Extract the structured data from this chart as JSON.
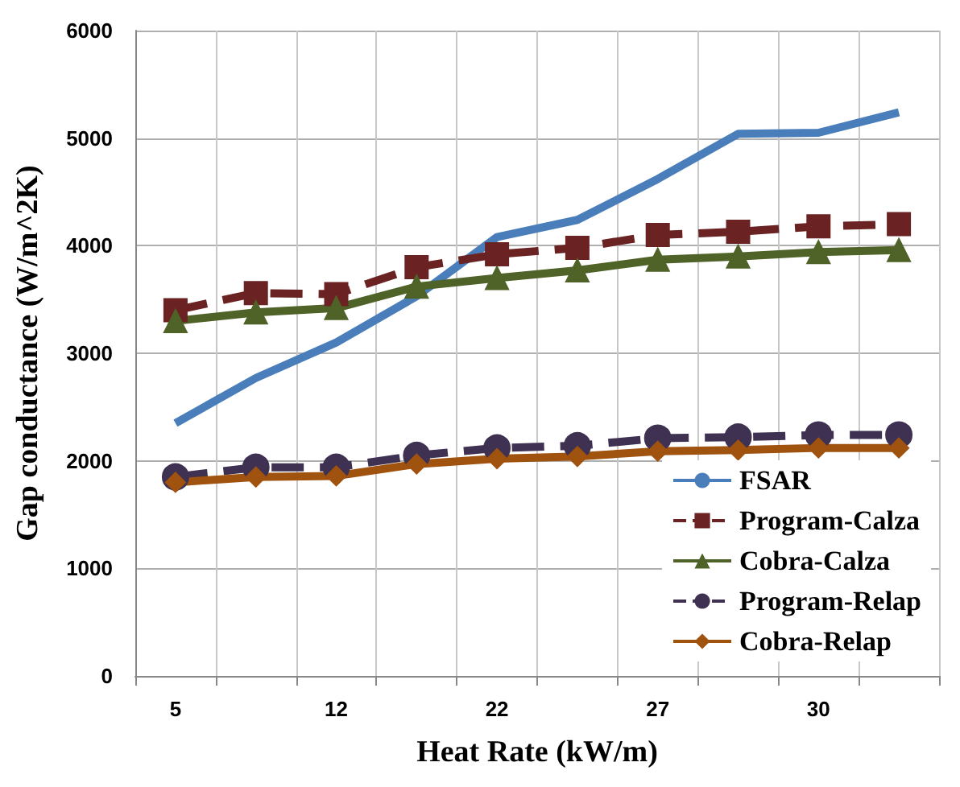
{
  "chart_data": {
    "type": "line",
    "xlabel": "Heat Rate (kW/m)",
    "ylabel": "Gap conductance (W/m^2K)",
    "categories": [
      "5",
      null,
      "12",
      null,
      "22",
      null,
      "27",
      null,
      "30",
      null
    ],
    "ylim": [
      0,
      6000
    ],
    "yticks": [
      0,
      1000,
      2000,
      3000,
      4000,
      5000,
      6000
    ],
    "grid": true,
    "legend": "bottom right",
    "series": [
      {
        "name": "FSAR",
        "color": "#4a7ebb",
        "marker": "none",
        "line_style": "solid",
        "values": [
          2350,
          2770,
          3100,
          3530,
          4080,
          4240,
          4620,
          5040,
          5050,
          5240
        ]
      },
      {
        "name": "Program-Calza",
        "color": "#6b2222",
        "marker": "square",
        "line_style": "dashed",
        "values": [
          3400,
          3560,
          3550,
          3800,
          3920,
          3980,
          4100,
          4130,
          4180,
          4200
        ]
      },
      {
        "name": "Cobra-Calza",
        "color": "#4f6228",
        "marker": "triangle",
        "line_style": "solid",
        "values": [
          3300,
          3380,
          3420,
          3620,
          3700,
          3770,
          3870,
          3900,
          3940,
          3960
        ]
      },
      {
        "name": "Program-Relap",
        "color": "#3f3151",
        "marker": "circle",
        "line_style": "dashed",
        "values": [
          1850,
          1940,
          1940,
          2050,
          2120,
          2140,
          2210,
          2220,
          2240,
          2240
        ]
      },
      {
        "name": "Cobra-Relap",
        "color": "#a0520f",
        "marker": "diamond",
        "line_style": "solid",
        "values": [
          1800,
          1850,
          1860,
          1970,
          2020,
          2040,
          2090,
          2100,
          2120,
          2120
        ]
      }
    ]
  }
}
